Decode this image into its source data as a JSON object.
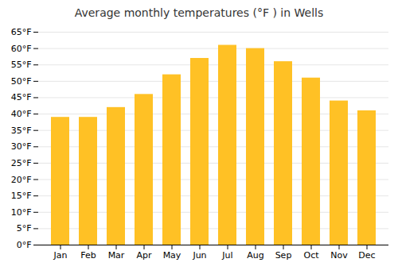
{
  "chart_data": {
    "type": "bar",
    "title": "Average monthly temperatures (°F ) in Wells",
    "categories": [
      "Jan",
      "Feb",
      "Mar",
      "Apr",
      "May",
      "Jun",
      "Jul",
      "Aug",
      "Sep",
      "Oct",
      "Nov",
      "Dec"
    ],
    "values": [
      39,
      39,
      42,
      46,
      52,
      57,
      61,
      60,
      56,
      51,
      44,
      41
    ],
    "color": "#FFC125",
    "ylim": [
      0,
      65
    ],
    "yticks": [
      {
        "value": 0,
        "label": "0°F"
      },
      {
        "value": 5,
        "label": "5°F"
      },
      {
        "value": 10,
        "label": "10°F"
      },
      {
        "value": 15,
        "label": "15°F"
      },
      {
        "value": 20,
        "label": "20°F"
      },
      {
        "value": 25,
        "label": "25°F"
      },
      {
        "value": 30,
        "label": "30°F"
      },
      {
        "value": 35,
        "label": "35°F"
      },
      {
        "value": 40,
        "label": "40°F"
      },
      {
        "value": 45,
        "label": "45°F"
      },
      {
        "value": 50,
        "label": "50°F"
      },
      {
        "value": 55,
        "label": "55°F"
      },
      {
        "value": 60,
        "label": "60°F"
      },
      {
        "value": 65,
        "label": "65°F"
      }
    ],
    "grid": true
  }
}
